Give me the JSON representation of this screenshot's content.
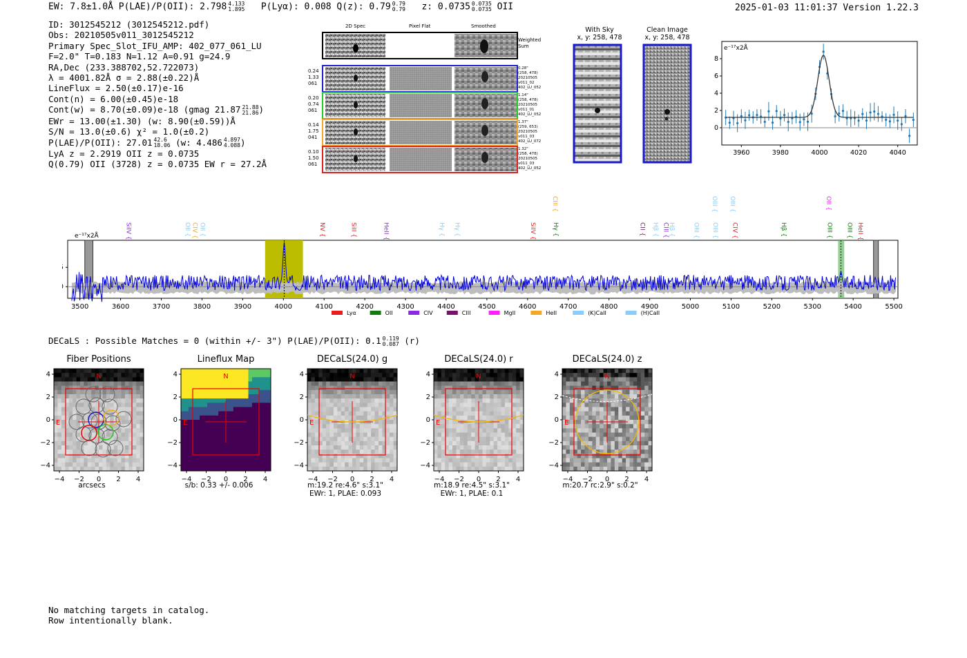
{
  "header": {
    "left": "EW: 7.8±1.0Å  P(LAE)/P(OII): 2.798",
    "left_sup": "4.133",
    "left_sub": "1.895",
    "mid1": "P(Lyα): 0.008  Q(z): 0.79",
    "qz_sup": "0.79",
    "qz_sub": "0.79",
    "mid2": "z: 0.0735",
    "z_sup": "0.0735",
    "z_sub": "0.0735",
    "mid3": "OII",
    "right": "2025-01-03 11:01:37  Version 1.22.3"
  },
  "info": {
    "l1": "ID: 3012545212 (3012545212.pdf)",
    "l2": "Obs: 20210505v011_3012545212",
    "l3": "Primary Spec_Slot_IFU_AMP: 402_077_061_LU",
    "l4": "F=2.0\"  T=0.183  N=1.12  A=0.91  g=24.9",
    "l5": "RA,Dec (233.388702,52.722073)",
    "l6": "λ = 4001.82Å  σ = 2.88(±0.22)Å",
    "l7": "LineFlux = 2.50(±0.17)e-16",
    "l8": "Cont(n) = 6.00(±0.45)e-18",
    "l9": "Cont(w) = 8.70(±0.09)e-18 (gmag 21.87",
    "l9_sup": "21.88",
    "l9_sub": "21.86",
    "l10": "EWr = 13.00(±1.30) (w: 8.90(±0.59))Å",
    "l11": "S/N = 13.0(±0.6)  χ² = 1.0(±0.2)",
    "l12": "P(LAE)/P(OII): 27.01",
    "l12_sup": "42.6",
    "l12_sub": "18.06",
    "l12b": "(w: 4.486",
    "l12b_sup": "4.897",
    "l12b_sub": "4.088",
    "l13": "LyA z = 2.2919  OII z = 0.0735",
    "l14": "Q(0.79) OII (3728) z = 0.0735  EW r = 27.2Å"
  },
  "cutouts": {
    "col_titles": [
      "2D Spec",
      "Pixel Flat",
      "Smoothed"
    ],
    "weighted_label": "Weighted Sum",
    "rows": [
      {
        "left": [
          "0.24",
          "1.33",
          "061"
        ],
        "right": [
          "0.28\"",
          "(258, 478)",
          "20210505",
          "v011_02",
          "402_LU_052"
        ],
        "color": "#1f1fd0"
      },
      {
        "left": [
          "0.20",
          "0.74",
          "061"
        ],
        "right": [
          "1.14\"",
          "(258, 478)",
          "20210505",
          "v011_01",
          "402_LU_052"
        ],
        "color": "#22cc22"
      },
      {
        "left": [
          "0.14",
          "1.75",
          "041"
        ],
        "right": [
          "1.37\"",
          "(259, 653)",
          "20210505",
          "v011_03",
          "402_LU_072"
        ],
        "color": "#f5a623"
      },
      {
        "left": [
          "0.10",
          "1.50",
          "061"
        ],
        "right": [
          "1.32\"",
          "(258, 478)",
          "20210505",
          "v011_03",
          "402_LU_052"
        ],
        "color": "#e02020"
      }
    ]
  },
  "sky": {
    "with_sky_title": "With Sky",
    "with_sky_sub": "x, y: 258, 478",
    "clean_title": "Clean Image",
    "clean_sub": "x, y: 258, 478"
  },
  "zoom_plot": {
    "unit": "e⁻¹⁷x2Å",
    "xticks": [
      "3960",
      "3980",
      "4000",
      "4020",
      "4040"
    ],
    "yticks": [
      "0",
      "2",
      "4",
      "6",
      "8"
    ]
  },
  "full_spec": {
    "unit": "e⁻¹⁷x2Å",
    "xticks": [
      "3500",
      "3600",
      "3700",
      "3800",
      "3900",
      "4000",
      "4100",
      "4200",
      "4300",
      "4400",
      "4500",
      "4600",
      "4700",
      "4800",
      "4900",
      "5000",
      "5100",
      "5200",
      "5300",
      "5400",
      "5500"
    ],
    "yticks": [
      "0",
      "5"
    ],
    "legend": [
      {
        "label": "Lyα",
        "color": "#e81c1c"
      },
      {
        "label": "OII",
        "color": "#0e7d0e"
      },
      {
        "label": "CIV",
        "color": "#8a2be2"
      },
      {
        "label": "CIII",
        "color": "#7a0f6e"
      },
      {
        "label": "MgII",
        "color": "#ff22ff"
      },
      {
        "label": "HeII",
        "color": "#f5a623"
      },
      {
        "label": "(K)CaII",
        "color": "#87cefa"
      },
      {
        "label": "(H)CaII",
        "color": "#87cefa"
      }
    ],
    "line_labels": [
      {
        "text": "SiIV {",
        "color": "#8a2be2",
        "wl": 3610,
        "row": 2
      },
      {
        "text": "OII {",
        "color": "#87cefa",
        "wl": 3755,
        "row": 2
      },
      {
        "text": "CIV {",
        "color": "#f5a623",
        "wl": 3773,
        "row": 2
      },
      {
        "text": "OII {",
        "color": "#87cefa",
        "wl": 3792,
        "row": 2
      },
      {
        "text": "NV {",
        "color": "#e81c1c",
        "wl": 4086,
        "row": 2
      },
      {
        "text": "SiII {",
        "color": "#e81c1c",
        "wl": 4163,
        "row": 2
      },
      {
        "text": "HeII {",
        "color": "#8a2be2",
        "wl": 4243,
        "row": 2
      },
      {
        "text": "Hγ {",
        "color": "#87cefa",
        "wl": 4380,
        "row": 2
      },
      {
        "text": "Hγ {",
        "color": "#87cefa",
        "wl": 4418,
        "row": 2
      },
      {
        "text": "SiIV {",
        "color": "#e81c1c",
        "wl": 4604,
        "row": 2
      },
      {
        "text": "CIII {",
        "color": "#f5a623",
        "wl": 4658,
        "row": 0
      },
      {
        "text": "Hγ {",
        "color": "#0e7d0e",
        "wl": 4660,
        "row": 2
      },
      {
        "text": "CII {",
        "color": "#7a0f6e",
        "wl": 4873,
        "row": 2
      },
      {
        "text": "Hβ {",
        "color": "#87cefa",
        "wl": 4905,
        "row": 2
      },
      {
        "text": "CIII {",
        "color": "#8a2be2",
        "wl": 4930,
        "row": 2
      },
      {
        "text": "Hβ {",
        "color": "#87cefa",
        "wl": 4945,
        "row": 2
      },
      {
        "text": "OIII {",
        "color": "#87cefa",
        "wl": 5005,
        "row": 2
      },
      {
        "text": "OIII {",
        "color": "#87cefa",
        "wl": 5050,
        "row": 0
      },
      {
        "text": "OIII {",
        "color": "#87cefa",
        "wl": 5052,
        "row": 2
      },
      {
        "text": "CIV {",
        "color": "#e81c1c",
        "wl": 5100,
        "row": 2
      },
      {
        "text": "OIII {",
        "color": "#87cefa",
        "wl": 5094,
        "row": 0
      },
      {
        "text": "Hβ {",
        "color": "#0e7d0e",
        "wl": 5220,
        "row": 2
      },
      {
        "text": "OII {",
        "color": "#ff22ff",
        "wl": 5330,
        "row": 0
      },
      {
        "text": "OIII {",
        "color": "#0e7d0e",
        "wl": 5333,
        "row": 2
      },
      {
        "text": "OIII {",
        "color": "#0e7d0e",
        "wl": 5382,
        "row": 2
      },
      {
        "text": "HeII {",
        "color": "#e81c1c",
        "wl": 5408,
        "row": 2
      }
    ]
  },
  "decals": {
    "line_pre": "DECaLS : Possible Matches = 0 (within +/- 3\")  P(LAE)/P(OII): 0.1",
    "plae_sup": "0.119",
    "plae_sub": "0.087",
    "line_post": "(r)"
  },
  "panels": [
    {
      "title": "Fiber Positions",
      "cap1": "arcsecs",
      "cap2": "",
      "cap3": ""
    },
    {
      "title": "Lineflux Map",
      "cap1": "s/b: 0.33 +/- 0.006",
      "cap2": "",
      "cap3": ""
    },
    {
      "title": "DECaLS(24.0) g",
      "cap1": "m:19.2  re:4.6\"  s:3.1\"",
      "cap2": "EWr: 1, PLAE: 0.093",
      "cap3": ""
    },
    {
      "title": "DECaLS(24.0) r",
      "cap1": "m:18.9  re:4.5\"  s:3.1\"",
      "cap2": "EWr: 1, PLAE: 0.1",
      "cap3": ""
    },
    {
      "title": "DECaLS(24.0) z",
      "cap1": "m:20.7 rc:2.9\"  s:0.2\"",
      "cap2": "",
      "cap3": ""
    }
  ],
  "panel_axes": {
    "ticks": [
      "−4",
      "−2",
      "0",
      "2",
      "4"
    ],
    "north": "N",
    "east": "E"
  },
  "footer": {
    "l1": "No matching targets in catalog.",
    "l2": "Row intentionally blank."
  }
}
